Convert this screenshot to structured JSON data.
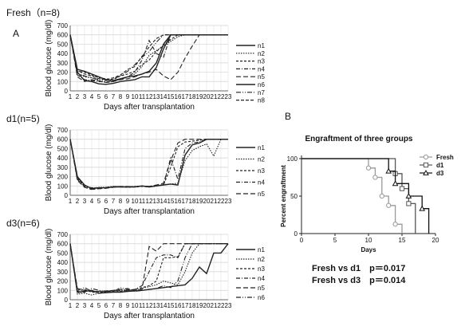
{
  "panel_a_label": "A",
  "panel_b_label": "B",
  "chart_data": [
    {
      "type": "line",
      "title": "Fresh（n=8)",
      "ylabel": "Blood  glucose  (mg/dl)",
      "xlabel": "Days after transplantation",
      "x": [
        1,
        2,
        3,
        4,
        5,
        6,
        7,
        8,
        9,
        10,
        11,
        12,
        13,
        14,
        15,
        16,
        17,
        18,
        19,
        20,
        21,
        22,
        23
      ],
      "ylim": [
        0,
        700
      ],
      "yticks": [
        0,
        100,
        200,
        300,
        400,
        500,
        600,
        700
      ],
      "grid": true,
      "legend": "right",
      "series": [
        {
          "name": "n1",
          "dash": "",
          "values": [
            600,
            200,
            110,
            100,
            75,
            70,
            80,
            100,
            110,
            120,
            150,
            150,
            250,
            450,
            600,
            600,
            600,
            600,
            600,
            600,
            600,
            600,
            600
          ]
        },
        {
          "name": "n2",
          "dash": "1.5,1.5",
          "values": [
            600,
            190,
            150,
            140,
            110,
            90,
            100,
            130,
            150,
            180,
            260,
            380,
            430,
            480,
            530,
            580,
            600,
            600,
            600,
            600,
            600,
            600,
            600
          ]
        },
        {
          "name": "n3",
          "dash": "3,2",
          "values": [
            600,
            210,
            200,
            170,
            140,
            130,
            120,
            160,
            180,
            210,
            280,
            330,
            420,
            490,
            550,
            600,
            600,
            600,
            600,
            600,
            600,
            600,
            600
          ]
        },
        {
          "name": "n4",
          "dash": "5,2,1,2",
          "values": [
            600,
            170,
            120,
            110,
            100,
            95,
            110,
            120,
            150,
            200,
            330,
            540,
            400,
            360,
            600,
            600,
            600,
            600,
            600,
            600,
            600,
            600,
            600
          ]
        },
        {
          "name": "n5",
          "dash": "6,3",
          "values": [
            600,
            150,
            100,
            120,
            105,
            90,
            100,
            120,
            130,
            150,
            180,
            200,
            230,
            160,
            120,
            200,
            350,
            480,
            600,
            600,
            600,
            600,
            600
          ]
        },
        {
          "name": "n6",
          "dash": "",
          "values": [
            600,
            230,
            210,
            180,
            150,
            120,
            110,
            130,
            150,
            160,
            180,
            210,
            300,
            500,
            600,
            600,
            600,
            600,
            600,
            600,
            600,
            600,
            600
          ]
        },
        {
          "name": "n7",
          "dash": "6,2,1,2,1,2",
          "values": [
            600,
            190,
            160,
            140,
            120,
            110,
            130,
            160,
            210,
            280,
            360,
            420,
            520,
            600,
            600,
            600,
            600,
            600,
            600,
            600,
            600,
            600,
            600
          ]
        },
        {
          "name": "n8",
          "dash": "4,2",
          "values": [
            600,
            220,
            180,
            160,
            130,
            120,
            140,
            170,
            230,
            260,
            370,
            470,
            560,
            600,
            600,
            600,
            600,
            600,
            600,
            600,
            600,
            600,
            600
          ]
        }
      ]
    },
    {
      "type": "line",
      "title": "d1(n=5)",
      "ylabel": "Blood  glucose  (mg/dl)",
      "xlabel": "Days after transplantation",
      "x": [
        1,
        2,
        3,
        4,
        5,
        6,
        7,
        8,
        9,
        10,
        11,
        12,
        13,
        14,
        15,
        16,
        17,
        18,
        19,
        20,
        21,
        22,
        23
      ],
      "ylim": [
        0,
        700
      ],
      "yticks": [
        0,
        100,
        200,
        300,
        400,
        500,
        600,
        700
      ],
      "grid": true,
      "legend": "right",
      "series": [
        {
          "name": "n1",
          "dash": "",
          "values": [
            600,
            200,
            110,
            70,
            80,
            80,
            90,
            90,
            90,
            90,
            100,
            90,
            100,
            110,
            120,
            110,
            430,
            540,
            560,
            600,
            600,
            600,
            600
          ]
        },
        {
          "name": "n2",
          "dash": "1.5,1.5",
          "values": [
            600,
            180,
            100,
            75,
            85,
            85,
            95,
            95,
            90,
            95,
            100,
            95,
            105,
            115,
            120,
            130,
            370,
            480,
            520,
            550,
            420,
            600,
            600
          ]
        },
        {
          "name": "n3",
          "dash": "3,2",
          "values": [
            600,
            190,
            90,
            60,
            75,
            80,
            90,
            90,
            85,
            90,
            95,
            90,
            100,
            110,
            300,
            520,
            570,
            580,
            590,
            600,
            600,
            600,
            600
          ]
        },
        {
          "name": "n4",
          "dash": "5,2,1,2",
          "values": [
            600,
            170,
            95,
            80,
            80,
            85,
            95,
            90,
            90,
            95,
            100,
            95,
            100,
            115,
            400,
            170,
            500,
            560,
            570,
            600,
            600,
            600,
            600
          ]
        },
        {
          "name": "n5",
          "dash": "6,3",
          "values": [
            600,
            160,
            85,
            65,
            70,
            75,
            85,
            95,
            95,
            90,
            100,
            95,
            110,
            130,
            370,
            560,
            600,
            600,
            600,
            600,
            600,
            600,
            600
          ]
        }
      ]
    },
    {
      "type": "line",
      "title": "d3(n=6)",
      "ylabel": "Blood  glucose  (mg/dl)",
      "xlabel": "Days after transplantation",
      "x": [
        1,
        2,
        3,
        4,
        5,
        6,
        7,
        8,
        9,
        10,
        11,
        12,
        13,
        14,
        15,
        16,
        17,
        18,
        19,
        20,
        21,
        22,
        23
      ],
      "ylim": [
        0,
        700
      ],
      "yticks": [
        0,
        100,
        200,
        300,
        400,
        500,
        600,
        700
      ],
      "grid": true,
      "legend": "right",
      "series": [
        {
          "name": "n1",
          "dash": "",
          "values": [
            600,
            80,
            90,
            100,
            70,
            75,
            80,
            80,
            90,
            95,
            100,
            110,
            120,
            130,
            140,
            150,
            160,
            230,
            350,
            280,
            500,
            500,
            600
          ]
        },
        {
          "name": "n2",
          "dash": "1.5,1.5",
          "values": [
            600,
            60,
            70,
            50,
            70,
            80,
            90,
            100,
            110,
            100,
            120,
            140,
            160,
            200,
            180,
            160,
            300,
            500,
            600,
            600,
            600,
            600,
            600
          ]
        },
        {
          "name": "n3",
          "dash": "3,2",
          "values": [
            600,
            90,
            110,
            80,
            75,
            85,
            95,
            90,
            100,
            110,
            130,
            150,
            200,
            450,
            450,
            460,
            600,
            600,
            600,
            600,
            600,
            600,
            600
          ]
        },
        {
          "name": "n4",
          "dash": "5,2,1,2",
          "values": [
            600,
            100,
            130,
            90,
            85,
            90,
            100,
            95,
            100,
            110,
            150,
            300,
            450,
            480,
            480,
            450,
            600,
            600,
            600,
            600,
            600,
            600,
            600
          ]
        },
        {
          "name": "n5",
          "dash": "6,3",
          "values": [
            600,
            120,
            100,
            90,
            90,
            95,
            100,
            110,
            120,
            100,
            110,
            570,
            520,
            600,
            600,
            600,
            600,
            600,
            600,
            600,
            600,
            600,
            600
          ]
        },
        {
          "name": "n6",
          "dash": "6,2,1,2,1,2",
          "values": [
            600,
            70,
            80,
            120,
            100,
            90,
            85,
            130,
            110,
            90,
            100,
            110,
            120,
            150,
            130,
            200,
            450,
            600,
            600,
            600,
            600,
            600,
            600
          ]
        }
      ]
    },
    {
      "type": "line",
      "subtype": "step",
      "title": "Engraftment of three groups",
      "ylabel": "Percent engraftment",
      "xlabel": "Days",
      "xlim": [
        0,
        20
      ],
      "xticks": [
        0,
        5,
        10,
        15,
        20
      ],
      "ylim": [
        0,
        100
      ],
      "yticks": [
        0,
        50,
        100
      ],
      "grid": false,
      "legend": "top-right",
      "series": [
        {
          "name": "Fresh",
          "marker": "circle",
          "color": "#999999",
          "x": [
            0,
            10,
            11,
            12,
            13,
            14,
            15
          ],
          "values": [
            100,
            87.5,
            75,
            50,
            37.5,
            12.5,
            0
          ]
        },
        {
          "name": "d1",
          "marker": "square",
          "color": "#555555",
          "x": [
            0,
            14,
            15,
            16,
            17
          ],
          "values": [
            100,
            80,
            60,
            40,
            0
          ]
        },
        {
          "name": "d3",
          "marker": "triangle",
          "color": "#111111",
          "x": [
            0,
            13,
            14,
            16,
            18,
            19
          ],
          "values": [
            100,
            83.3,
            66.7,
            50,
            33.3,
            0
          ]
        }
      ],
      "annotations": [
        "Fresh vs d1　p＝0.017",
        "Fresh vs d3　p＝0.014"
      ]
    }
  ]
}
